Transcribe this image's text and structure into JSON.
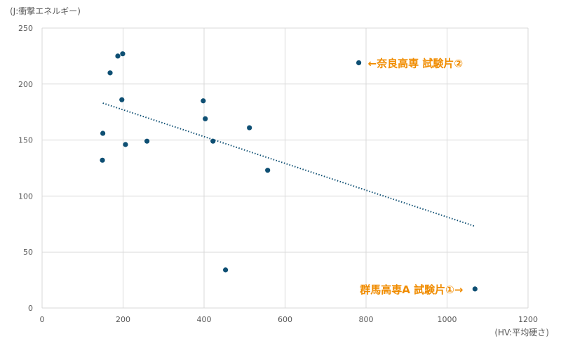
{
  "chart_data": {
    "type": "scatter",
    "title": "",
    "xlabel": "(HV:平均硬さ)",
    "ylabel": "(J:衝撃エネルギー)",
    "xlim": [
      0,
      1200
    ],
    "ylim": [
      0,
      250
    ],
    "xticks": [
      0,
      200,
      400,
      600,
      800,
      1000,
      1200
    ],
    "yticks": [
      0,
      50,
      100,
      150,
      200,
      250
    ],
    "grid": true,
    "marker_color": "#0E4F73",
    "trendline": {
      "type": "linear",
      "style": "dotted",
      "color": "#0E4F73",
      "x": [
        150,
        1069
      ],
      "y": [
        183,
        73
      ]
    },
    "points": [
      {
        "x": 187,
        "y": 225
      },
      {
        "x": 199,
        "y": 227
      },
      {
        "x": 168,
        "y": 210
      },
      {
        "x": 197,
        "y": 186
      },
      {
        "x": 150,
        "y": 156
      },
      {
        "x": 206,
        "y": 146
      },
      {
        "x": 149,
        "y": 132
      },
      {
        "x": 259,
        "y": 149
      },
      {
        "x": 398,
        "y": 185
      },
      {
        "x": 403,
        "y": 169
      },
      {
        "x": 422,
        "y": 149
      },
      {
        "x": 512,
        "y": 161
      },
      {
        "x": 557,
        "y": 123
      },
      {
        "x": 453,
        "y": 34
      },
      {
        "x": 782,
        "y": 219
      },
      {
        "x": 1069,
        "y": 17
      }
    ],
    "annotations": [
      {
        "text": "←奈良高専 試験片②",
        "x": 782,
        "y": 219,
        "anchor": "right",
        "color": "#F08C00"
      },
      {
        "text": "群馬高専A 試験片①→",
        "x": 1069,
        "y": 17,
        "anchor": "left",
        "color": "#F08C00"
      }
    ]
  }
}
